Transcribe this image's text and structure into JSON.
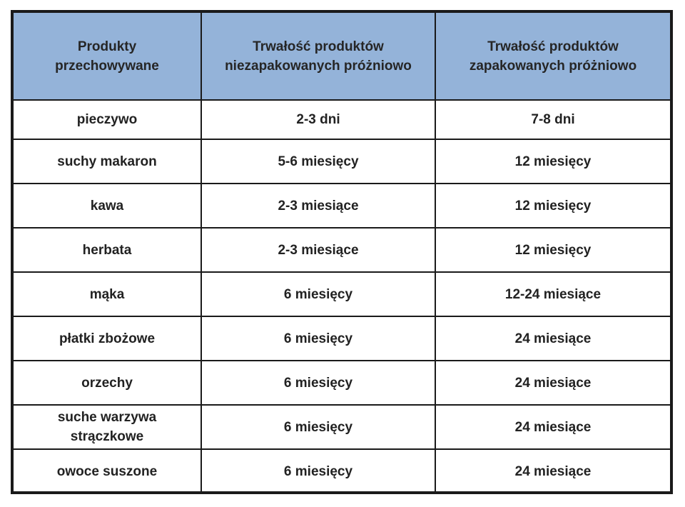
{
  "header": {
    "col1": [
      "Produkty",
      "przechowywane"
    ],
    "col2": [
      "Trwałość produktów",
      "niezapakowanych próżniowo"
    ],
    "col3": [
      "Trwałość produktów",
      "zapakowanych próżniowo"
    ]
  },
  "rows": [
    {
      "product": [
        "pieczywo"
      ],
      "unpacked": "2-3 dni",
      "vacuum": "7-8 dni"
    },
    {
      "product": [
        "suchy makaron"
      ],
      "unpacked": "5-6 miesięcy",
      "vacuum": "12 miesięcy"
    },
    {
      "product": [
        "kawa"
      ],
      "unpacked": "2-3 miesiące",
      "vacuum": "12 miesięcy"
    },
    {
      "product": [
        "herbata"
      ],
      "unpacked": "2-3 miesiące",
      "vacuum": "12 miesięcy"
    },
    {
      "product": [
        "mąka"
      ],
      "unpacked": "6 miesięcy",
      "vacuum": "12-24 miesiące"
    },
    {
      "product": [
        "płatki zbożowe"
      ],
      "unpacked": "6 miesięcy",
      "vacuum": "24 miesiące"
    },
    {
      "product": [
        "orzechy"
      ],
      "unpacked": "6 miesięcy",
      "vacuum": "24 miesiące"
    },
    {
      "product": [
        "suche warzywa",
        "strączkowe"
      ],
      "unpacked": "6 miesięcy",
      "vacuum": "24 miesiące"
    },
    {
      "product": [
        "owoce suszone"
      ],
      "unpacked": "6 miesięcy",
      "vacuum": "24 miesiące"
    }
  ],
  "colors": {
    "header_bg": "#94b3d9",
    "border": "#1a1a1a",
    "text": "#222222"
  }
}
